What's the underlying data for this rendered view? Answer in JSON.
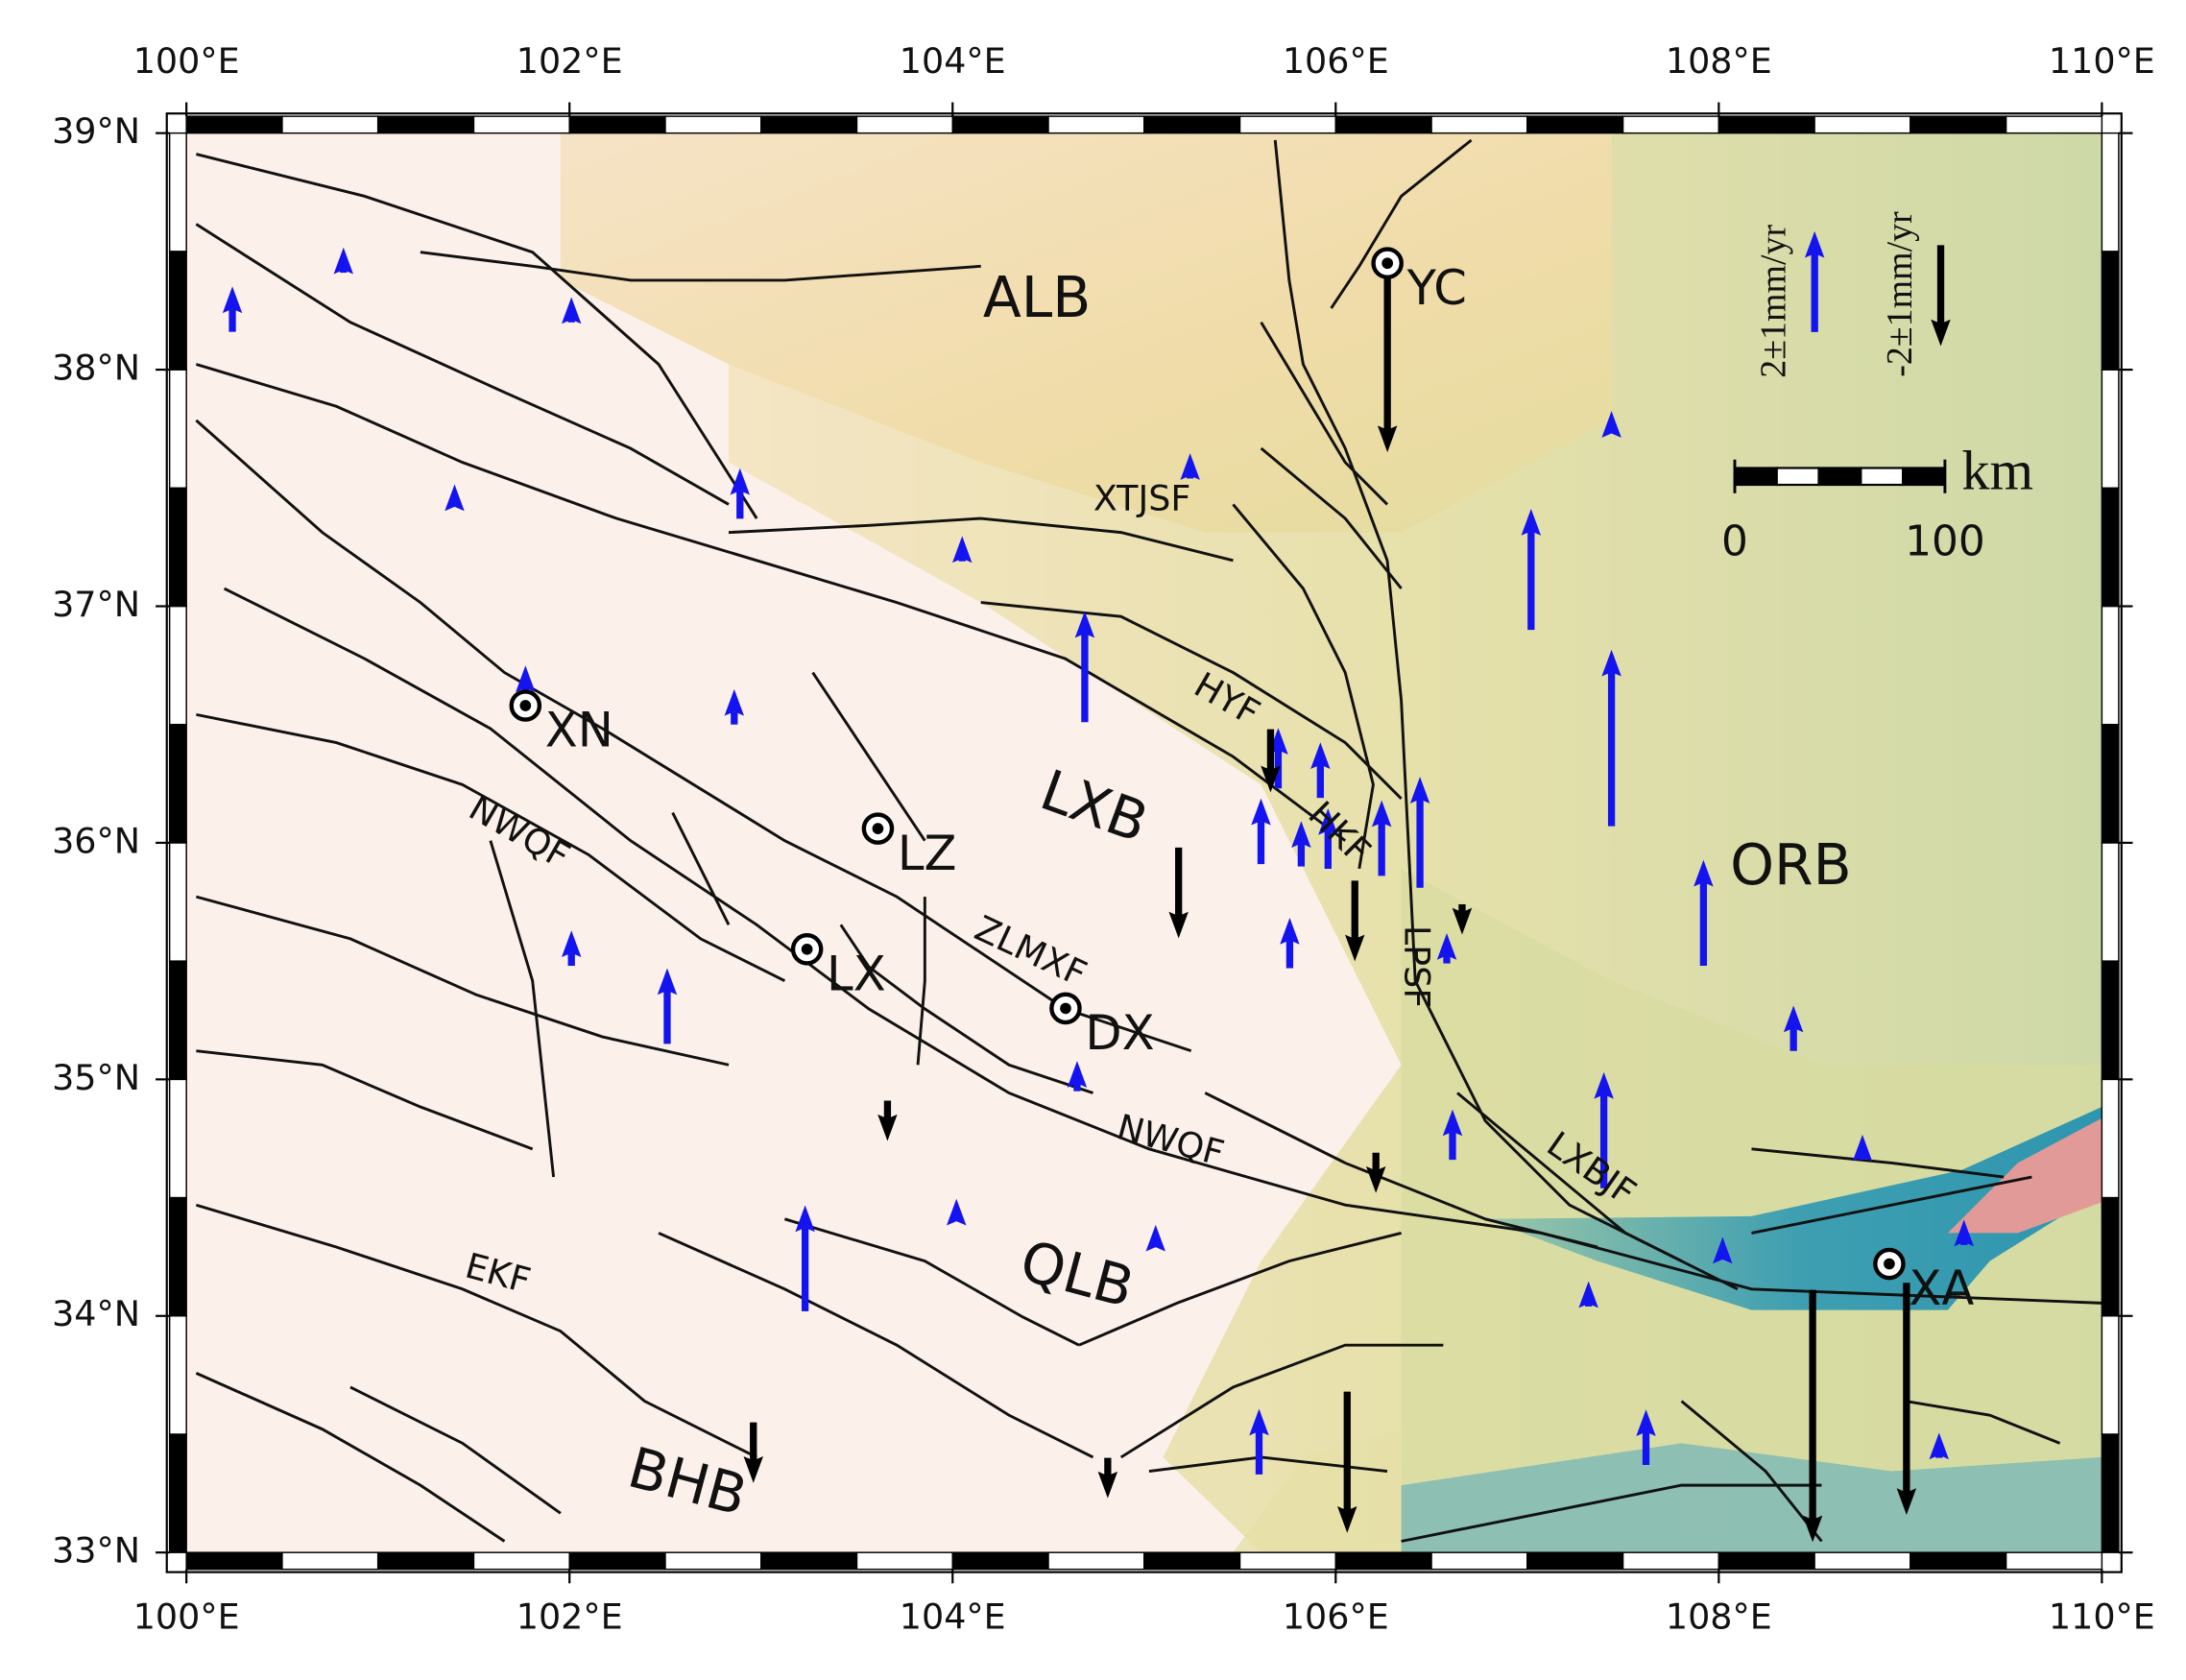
{
  "map": {
    "xlim": [
      100,
      110
    ],
    "ylim": [
      33,
      39
    ],
    "xticks": [
      {
        "value": 100,
        "label": "100°E"
      },
      {
        "value": 102,
        "label": "102°E"
      },
      {
        "value": 104,
        "label": "104°E"
      },
      {
        "value": 106,
        "label": "106°E"
      },
      {
        "value": 108,
        "label": "108°E"
      },
      {
        "value": 110,
        "label": "110°E"
      }
    ],
    "yticks": [
      {
        "value": 33,
        "label": "33°N"
      },
      {
        "value": 34,
        "label": "34°N"
      },
      {
        "value": 35,
        "label": "35°N"
      },
      {
        "value": 36,
        "label": "36°N"
      },
      {
        "value": 37,
        "label": "37°N"
      },
      {
        "value": 38,
        "label": "38°N"
      },
      {
        "value": 39,
        "label": "39°N"
      }
    ],
    "colors": {
      "uplift": "#1414f0",
      "subsidence": "#000000"
    },
    "stations": {
      "lon": [
        100.24,
        100.82,
        102.01,
        102.89,
        101.4,
        104.05,
        105.24,
        104.69,
        102.86,
        101.77,
        107.02,
        107.44,
        107.44,
        107.92,
        108.39,
        107.4,
        106.61,
        106.44,
        106.24,
        105.96,
        105.82,
        105.61,
        105.92,
        105.7,
        105.76,
        106.58,
        102.01,
        102.51,
        104.65,
        103.23,
        104.02,
        105.06,
        107.32,
        108.02,
        108.75,
        109.28,
        107.62,
        105.6,
        109.15,
        106.27,
        105.66,
        105.18,
        106.1,
        106.66,
        103.66,
        106.21,
        102.96,
        104.81,
        106.06,
        108.49,
        108.98
      ],
      "lat": [
        38.16,
        38.41,
        38.2,
        37.37,
        37.43,
        37.19,
        37.54,
        36.51,
        36.5,
        36.6,
        36.9,
        36.07,
        37.74,
        35.48,
        35.12,
        34.54,
        34.66,
        35.81,
        35.86,
        35.89,
        35.9,
        35.91,
        36.19,
        36.23,
        35.47,
        35.49,
        35.48,
        35.15,
        34.95,
        34.02,
        34.41,
        34.3,
        34.04,
        34.27,
        34.66,
        34.3,
        33.37,
        33.33,
        33.4,
        38.44,
        36.48,
        35.98,
        35.84,
        35.74,
        34.91,
        34.69,
        33.55,
        33.4,
        33.68,
        34.11,
        34.14
      ],
      "velocity": [
        0.9,
        0.5,
        0.5,
        1.0,
        0.4,
        0.5,
        0.5,
        2.2,
        0.7,
        0.7,
        2.4,
        3.5,
        0.4,
        2.1,
        0.9,
        2.3,
        1.0,
        2.2,
        1.5,
        1.2,
        0.9,
        1.3,
        1.1,
        1.2,
        1.0,
        0.6,
        0.7,
        1.5,
        0.6,
        2.1,
        0.4,
        0.4,
        0.5,
        0.3,
        0.5,
        0.5,
        1.1,
        1.3,
        0.5,
        -3.7,
        -1.25,
        -1.8,
        -1.6,
        -0.6,
        -0.8,
        -0.8,
        -1.2,
        -0.8,
        -2.8,
        -5.0,
        -4.6
      ]
    },
    "cities": [
      {
        "name": "YC",
        "lon": 106.27,
        "lat": 38.45
      },
      {
        "name": "XN",
        "lon": 101.77,
        "lat": 36.58
      },
      {
        "name": "LZ",
        "lon": 103.61,
        "lat": 36.06
      },
      {
        "name": "LX",
        "lon": 103.24,
        "lat": 35.55
      },
      {
        "name": "DX",
        "lon": 104.59,
        "lat": 35.3
      },
      {
        "name": "XA",
        "lon": 108.89,
        "lat": 34.22
      }
    ],
    "regions": [
      "ALB",
      "LXB",
      "ORB",
      "QLB",
      "BHB"
    ],
    "faults": [
      "XTJSF",
      "HYF",
      "HKF",
      "ZLMXF",
      "NWQF",
      "NWQF",
      "EKF",
      "LPSF",
      "LXBJF"
    ],
    "legend": [
      {
        "label": "2±1mm/yr",
        "value": 2
      },
      {
        "label": "-2±1mm/yr",
        "value": -2
      }
    ],
    "scale_bar": {
      "ticks": [
        0,
        100
      ],
      "unit": "km"
    }
  }
}
